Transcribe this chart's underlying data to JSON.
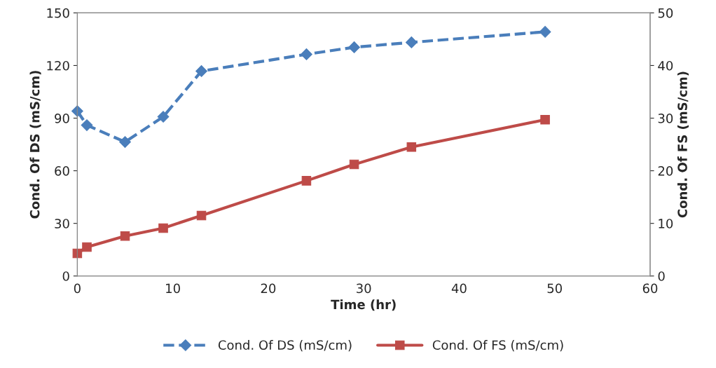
{
  "chart_data": {
    "type": "line",
    "xlabel": "Time (hr)",
    "ylabel": "Cond. Of DS (mS/cm)",
    "y2label": "Cond. Of FS (mS/cm)",
    "x": [
      0,
      1,
      5,
      9,
      13,
      24,
      29,
      35,
      49
    ],
    "series": [
      {
        "name": "Cond. Of DS (mS/cm)",
        "color": "#4a7ebb",
        "marker": "diamond",
        "line_style": "dashed",
        "values": [
          94,
          86,
          76.4,
          90.8,
          116.8,
          126.4,
          130.4,
          133.2,
          139.2
        ]
      },
      {
        "name": "Cond. Of FS (mS/cm)",
        "color": "#be4b48",
        "marker": "square",
        "line_style": "solid",
        "axis": "y2",
        "values": [
          4.3,
          5.5,
          7.6,
          9.1,
          11.5,
          18.1,
          21.2,
          24.5,
          29.7
        ]
      }
    ],
    "xlim": [
      0,
      60
    ],
    "xticks": [
      0,
      10,
      20,
      30,
      40,
      50,
      60
    ],
    "ylim": [
      0,
      150
    ],
    "yticks": [
      0,
      30,
      60,
      90,
      120,
      150
    ],
    "y2lim": [
      0,
      50
    ],
    "y2ticks": [
      0,
      10,
      20,
      30,
      40,
      50
    ],
    "grid": false,
    "legend": "bottom"
  }
}
